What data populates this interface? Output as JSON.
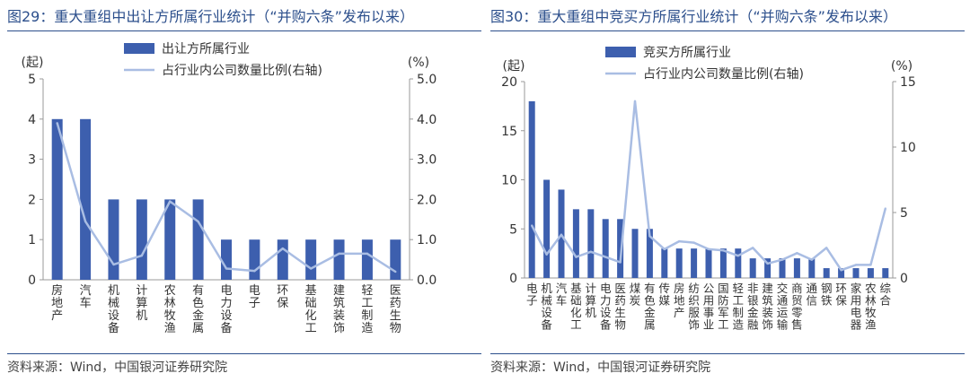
{
  "charts": [
    {
      "id": "fig29",
      "title": "图29：重大重组中出让方所属行业统计（“并购六条”发布以来）",
      "source": "资料来源：Wind，中国银河证券研究院",
      "bar_color": "#3d5fae",
      "line_color": "#a9bde3"
    },
    {
      "id": "fig30",
      "title": "图30：重大重组中竞买方所属行业统计（“并购六条”发布以来）",
      "source": "资料来源：Wind，中国银河证券研究院",
      "bar_color": "#3d5fae",
      "line_color": "#a9bde3"
    }
  ],
  "chart_data": [
    {
      "type": "bar",
      "title": "图29：重大重组中出让方所属行业统计（“并购六条”发布以来）",
      "categories": [
        "房地产",
        "汽车",
        "机械设备",
        "计算机",
        "农林牧渔",
        "有色金属",
        "电力设备",
        "电子",
        "环保",
        "基础化工",
        "建筑装饰",
        "轻工制造",
        "医药生物"
      ],
      "series": [
        {
          "name": "出让方所属行业",
          "type": "bar",
          "axis": "left",
          "values": [
            4,
            4,
            2,
            2,
            2,
            2,
            1,
            1,
            1,
            1,
            1,
            1,
            1
          ]
        },
        {
          "name": "占行业内公司数量比例(右轴)",
          "type": "line",
          "axis": "right",
          "values": [
            3.9,
            1.45,
            0.38,
            0.6,
            1.95,
            1.45,
            0.28,
            0.22,
            0.78,
            0.28,
            0.65,
            0.65,
            0.2
          ]
        }
      ],
      "ylabel_left": "(起)",
      "ylabel_right": "(%)",
      "ylim_left": [
        0,
        5
      ],
      "ylim_right": [
        0,
        5
      ],
      "yticks_left": [
        "0",
        "1",
        "2",
        "3",
        "4",
        "5"
      ],
      "yticks_right": [
        "0.0",
        "1.0",
        "2.0",
        "3.0",
        "4.0",
        "5.0"
      ],
      "legend": "top-center"
    },
    {
      "type": "bar",
      "title": "图30：重大重组中竞买方所属行业统计（“并购六条”发布以来）",
      "categories": [
        "电子",
        "机械设备",
        "汽车",
        "基础化工",
        "计算机",
        "电力设备",
        "医药生物",
        "煤炭",
        "有色金属",
        "传媒",
        "房地产",
        "纺织服饰",
        "公用事业",
        "国防军工",
        "轻工制造",
        "非银金融",
        "建筑装饰",
        "交通运输",
        "商贸零售",
        "通信",
        "钢铁",
        "环保",
        "家用电器",
        "农林牧渔",
        "综合"
      ],
      "series": [
        {
          "name": "竞买方所属行业",
          "type": "bar",
          "axis": "left",
          "values": [
            18,
            10,
            9,
            7,
            7,
            6,
            6,
            5,
            5,
            3,
            3,
            3,
            3,
            3,
            3,
            2,
            2,
            2,
            2,
            2,
            1,
            1,
            1,
            1,
            1
          ]
        },
        {
          "name": "占行业内公司数量比例(右轴)",
          "type": "line",
          "axis": "right",
          "values": [
            4.0,
            1.8,
            3.3,
            1.6,
            2.0,
            1.6,
            1.2,
            13.5,
            3.2,
            2.2,
            2.8,
            2.7,
            2.2,
            2.1,
            1.7,
            2.3,
            1.1,
            1.4,
            1.9,
            1.4,
            2.3,
            0.6,
            1.0,
            1.0,
            5.3
          ]
        }
      ],
      "ylabel_left": "(起)",
      "ylabel_right": "(%)",
      "ylim_left": [
        0,
        20
      ],
      "ylim_right": [
        0,
        15
      ],
      "yticks_left": [
        "0",
        "5",
        "10",
        "15",
        "20"
      ],
      "yticks_right": [
        "0",
        "5",
        "10",
        "15"
      ],
      "legend": "top-center"
    }
  ]
}
